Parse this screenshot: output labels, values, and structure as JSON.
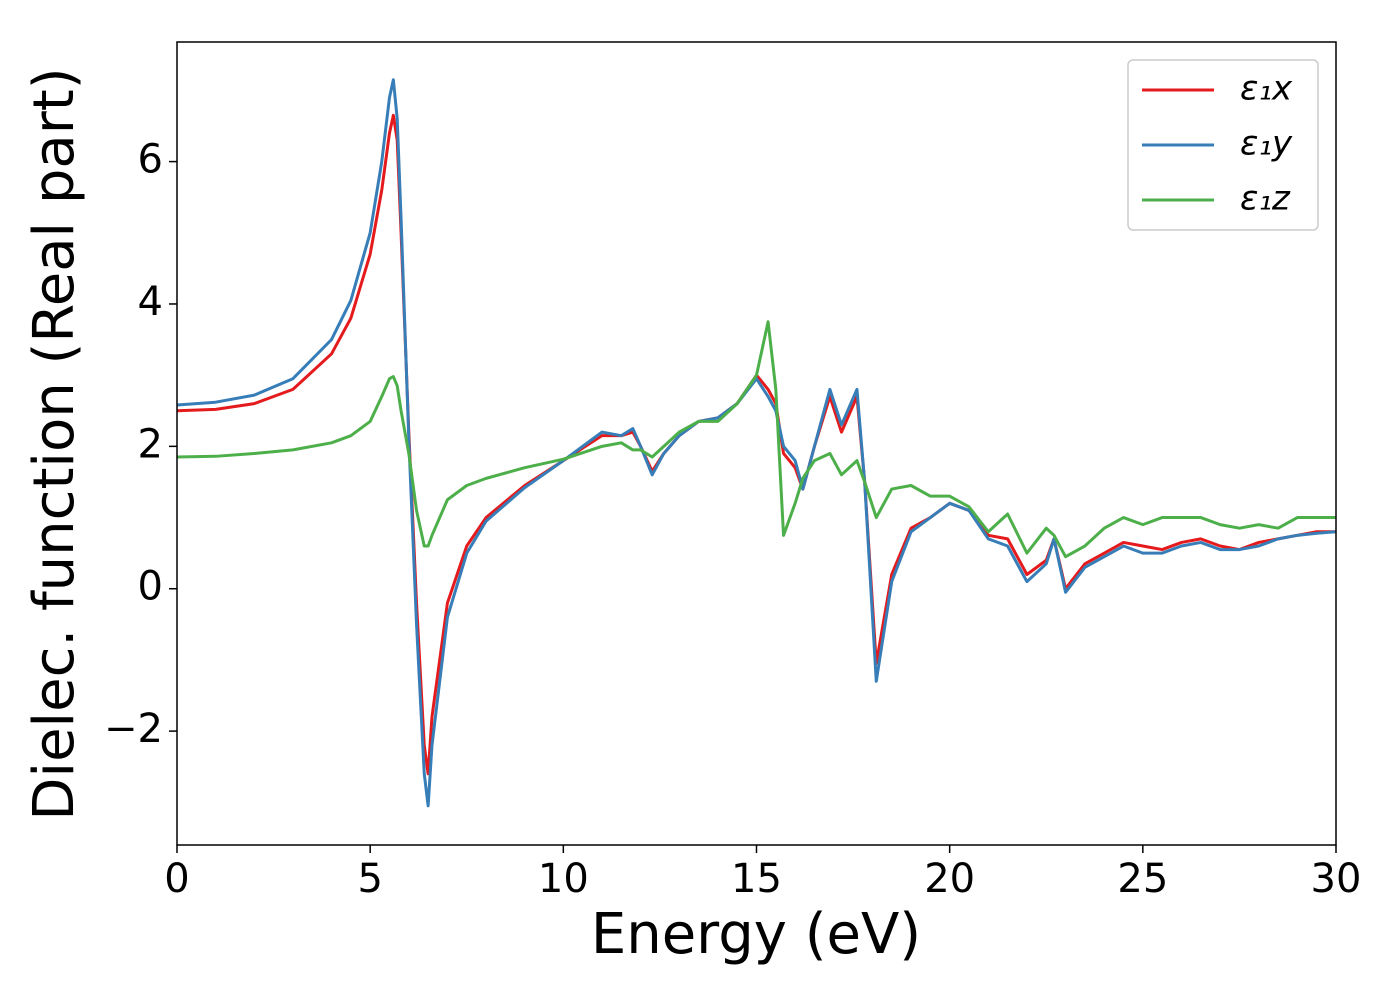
{
  "chart_data": {
    "type": "line",
    "xlabel": "Energy (eV)",
    "ylabel": "Dielec. function (Real part)",
    "x": [
      0,
      1,
      2,
      3,
      4,
      4.5,
      5,
      5.3,
      5.5,
      5.6,
      5.7,
      5.8,
      6,
      6.2,
      6.4,
      6.5,
      6.6,
      6.8,
      7,
      7.5,
      8,
      9,
      10,
      11,
      11.5,
      11.8,
      12,
      12.3,
      12.6,
      13,
      13.5,
      14,
      14.5,
      15,
      15.3,
      15.5,
      15.7,
      16,
      16.2,
      16.5,
      16.9,
      17.2,
      17.6,
      17.8,
      18.1,
      18.5,
      19,
      19.5,
      20,
      20.5,
      21,
      21.5,
      22,
      22.5,
      22.7,
      23,
      23.5,
      24,
      24.5,
      25,
      25.5,
      26,
      26.5,
      27,
      27.5,
      28,
      28.5,
      29,
      29.5,
      30
    ],
    "series": [
      {
        "name": "ε₁x",
        "color": "#e41a1c",
        "values": [
          2.5,
          2.52,
          2.6,
          2.8,
          3.3,
          3.8,
          4.7,
          5.6,
          6.4,
          6.65,
          6.3,
          5,
          2.2,
          -0.2,
          -2.2,
          -2.6,
          -1.8,
          -1.0,
          -0.2,
          0.6,
          1.0,
          1.45,
          1.8,
          2.15,
          2.15,
          2.2,
          2.0,
          1.65,
          1.9,
          2.15,
          2.35,
          2.4,
          2.6,
          3.0,
          2.8,
          2.6,
          1.9,
          1.7,
          1.4,
          2.0,
          2.7,
          2.2,
          2.7,
          1.5,
          -1.05,
          0.2,
          0.85,
          1.0,
          1.2,
          1.1,
          0.75,
          0.7,
          0.2,
          0.4,
          0.7,
          0.0,
          0.35,
          0.5,
          0.65,
          0.6,
          0.55,
          0.65,
          0.7,
          0.6,
          0.55,
          0.65,
          0.7,
          0.75,
          0.8,
          0.8
        ]
      },
      {
        "name": "ε₁y",
        "color": "#377eb8",
        "values": [
          2.58,
          2.62,
          2.72,
          2.95,
          3.5,
          4.05,
          5.0,
          6.0,
          6.9,
          7.15,
          6.6,
          5.2,
          2.1,
          -0.5,
          -2.6,
          -3.05,
          -2.2,
          -1.3,
          -0.4,
          0.5,
          0.95,
          1.42,
          1.8,
          2.2,
          2.15,
          2.25,
          2.0,
          1.6,
          1.9,
          2.15,
          2.35,
          2.4,
          2.6,
          2.95,
          2.7,
          2.5,
          2.0,
          1.8,
          1.4,
          2.0,
          2.8,
          2.3,
          2.8,
          1.5,
          -1.3,
          0.1,
          0.8,
          1.0,
          1.2,
          1.1,
          0.7,
          0.6,
          0.1,
          0.35,
          0.7,
          -0.05,
          0.3,
          0.45,
          0.6,
          0.5,
          0.5,
          0.6,
          0.65,
          0.55,
          0.55,
          0.6,
          0.7,
          0.75,
          0.78,
          0.8
        ]
      },
      {
        "name": "ε₁z",
        "color": "#4daf4a",
        "values": [
          1.85,
          1.86,
          1.9,
          1.95,
          2.05,
          2.15,
          2.35,
          2.7,
          2.95,
          2.98,
          2.85,
          2.5,
          1.9,
          1.1,
          0.6,
          0.6,
          0.75,
          1.0,
          1.25,
          1.45,
          1.55,
          1.7,
          1.82,
          2.0,
          2.05,
          1.95,
          1.95,
          1.85,
          2.0,
          2.2,
          2.35,
          2.35,
          2.6,
          3.0,
          3.75,
          2.8,
          0.75,
          1.2,
          1.55,
          1.8,
          1.9,
          1.6,
          1.8,
          1.5,
          1.0,
          1.4,
          1.45,
          1.3,
          1.3,
          1.15,
          0.8,
          1.05,
          0.5,
          0.85,
          0.75,
          0.45,
          0.6,
          0.85,
          1.0,
          0.9,
          1.0,
          1.0,
          1.0,
          0.9,
          0.85,
          0.9,
          0.85,
          1.0,
          1.0,
          1.0
        ]
      }
    ],
    "xlim": [
      0,
      30
    ],
    "xticks": [
      0,
      5,
      10,
      15,
      20,
      25,
      30
    ],
    "ylim": [
      -3.6,
      7.68
    ],
    "yticks": [
      {
        "value": -2,
        "label": "−2"
      },
      0,
      2,
      4,
      6
    ],
    "legend": "upper right"
  }
}
